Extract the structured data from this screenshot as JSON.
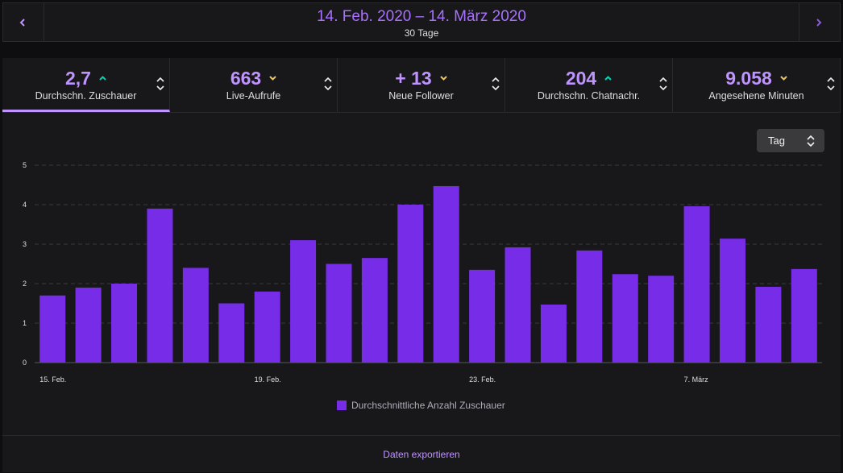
{
  "header": {
    "title": "14. Feb. 2020 – 14. März 2020",
    "subtitle": "30 Tage"
  },
  "stats": [
    {
      "value": "2,7",
      "label": "Durchschn. Zuschauer",
      "trend": "up"
    },
    {
      "value": "663",
      "label": "Live-Aufrufe",
      "trend": "down"
    },
    {
      "value": "+ 13",
      "label": "Neue Follower",
      "trend": "down"
    },
    {
      "value": "204",
      "label": "Durchschn. Chatnachr.",
      "trend": "up"
    },
    {
      "value": "9.058",
      "label": "Angesehene Minuten",
      "trend": "down"
    }
  ],
  "dropdown": "Tag",
  "chart_data": {
    "type": "bar",
    "categories": [
      "15. Feb.",
      null,
      null,
      null,
      null,
      null,
      "19. Feb.",
      null,
      null,
      null,
      null,
      null,
      "23. Feb.",
      null,
      null,
      null,
      null,
      null,
      "7. März",
      null,
      null,
      null
    ],
    "series": [
      {
        "name": "Durchschnittliche Anzahl Zuschauer",
        "color": "#772ce8",
        "values": [
          1.7,
          1.9,
          2.0,
          3.9,
          2.4,
          1.5,
          1.8,
          3.1,
          2.5,
          2.65,
          4.0,
          4.47,
          2.35,
          2.92,
          1.47,
          2.84,
          2.24,
          2.2,
          3.96,
          3.14,
          1.92,
          2.37
        ]
      }
    ],
    "ylim": [
      0,
      5
    ],
    "yticks": [
      0,
      1,
      2,
      3,
      4,
      5
    ],
    "grid": true
  },
  "footer": "Daten exportieren"
}
